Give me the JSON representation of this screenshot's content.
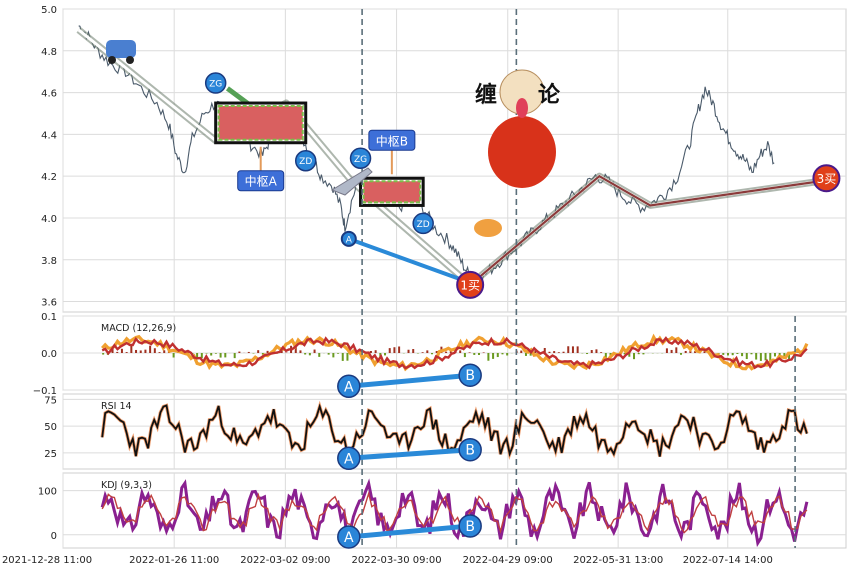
{
  "chart_data": [
    {
      "type": "line",
      "panel": "price",
      "ylim": [
        3.55,
        5.0
      ],
      "y_ticks": [
        "5.0",
        "4.8",
        "4.6",
        "4.4",
        "4.2",
        "4.0",
        "3.8",
        "3.6"
      ],
      "y_tick_values": [
        5.0,
        4.8,
        4.6,
        4.4,
        4.2,
        4.0,
        3.8,
        3.6
      ],
      "grid": true,
      "x_ticks": [
        "2021-12-28 11:00",
        "2022-01-26 11:00",
        "2022-03-02 09:00",
        "2022-03-30 09:00",
        "2022-04-29 09:00",
        "2022-05-31 13:00",
        "2022-07-14 14:00"
      ],
      "price_series": [
        [
          0.02,
          4.92
        ],
        [
          0.03,
          4.88
        ],
        [
          0.045,
          4.8
        ],
        [
          0.06,
          4.74
        ],
        [
          0.08,
          4.7
        ],
        [
          0.1,
          4.62
        ],
        [
          0.12,
          4.55
        ],
        [
          0.135,
          4.45
        ],
        [
          0.145,
          4.3
        ],
        [
          0.155,
          4.22
        ],
        [
          0.165,
          4.38
        ],
        [
          0.18,
          4.5
        ],
        [
          0.195,
          4.55
        ],
        [
          0.21,
          4.5
        ],
        [
          0.225,
          4.45
        ],
        [
          0.24,
          4.35
        ],
        [
          0.255,
          4.3
        ],
        [
          0.265,
          4.38
        ],
        [
          0.28,
          4.5
        ],
        [
          0.295,
          4.45
        ],
        [
          0.31,
          4.35
        ],
        [
          0.32,
          4.28
        ],
        [
          0.33,
          4.2
        ],
        [
          0.345,
          4.15
        ],
        [
          0.355,
          4.05
        ],
        [
          0.36,
          3.96
        ],
        [
          0.37,
          4.1
        ],
        [
          0.38,
          4.2
        ],
        [
          0.395,
          4.15
        ],
        [
          0.41,
          4.1
        ],
        [
          0.43,
          4.05
        ],
        [
          0.445,
          4.1
        ],
        [
          0.46,
          4.05
        ],
        [
          0.475,
          3.95
        ],
        [
          0.49,
          3.9
        ],
        [
          0.5,
          3.85
        ],
        [
          0.51,
          3.78
        ],
        [
          0.52,
          3.72
        ],
        [
          0.53,
          3.7
        ],
        [
          0.545,
          3.75
        ],
        [
          0.56,
          3.8
        ],
        [
          0.575,
          3.85
        ],
        [
          0.59,
          3.9
        ],
        [
          0.605,
          3.95
        ],
        [
          0.62,
          4.0
        ],
        [
          0.635,
          4.05
        ],
        [
          0.65,
          4.1
        ],
        [
          0.665,
          4.15
        ],
        [
          0.68,
          4.2
        ],
        [
          0.695,
          4.18
        ],
        [
          0.71,
          4.12
        ],
        [
          0.725,
          4.08
        ],
        [
          0.74,
          4.05
        ],
        [
          0.755,
          4.08
        ],
        [
          0.77,
          4.12
        ],
        [
          0.785,
          4.2
        ],
        [
          0.8,
          4.35
        ],
        [
          0.81,
          4.5
        ],
        [
          0.82,
          4.62
        ],
        [
          0.83,
          4.55
        ],
        [
          0.84,
          4.45
        ],
        [
          0.85,
          4.38
        ],
        [
          0.86,
          4.32
        ],
        [
          0.87,
          4.28
        ],
        [
          0.88,
          4.22
        ],
        [
          0.89,
          4.3
        ],
        [
          0.9,
          4.35
        ],
        [
          0.91,
          4.25
        ]
      ],
      "bi_lines": [
        {
          "points": [
            [
              0.02,
              4.9
            ],
            [
              0.195,
              4.37
            ],
            [
              0.285,
              4.55
            ],
            [
              0.37,
              4.17
            ],
            [
              0.52,
              3.68
            ],
            [
              0.685,
              4.2
            ],
            [
              0.75,
              4.06
            ],
            [
              0.975,
              4.18
            ]
          ],
          "color": "#e0e0e0"
        }
      ],
      "zhongshu": [
        {
          "label": "中枢A",
          "x0": 0.195,
          "x1": 0.31,
          "y0": 4.36,
          "y1": 4.55,
          "zg_label": "ZG",
          "zd_label": "ZD"
        },
        {
          "label": "中枢B",
          "x0": 0.38,
          "x1": 0.46,
          "y0": 4.06,
          "y1": 4.19,
          "zg_label": "ZG",
          "zd_label": "ZD"
        }
      ],
      "markers": [
        {
          "label": "A",
          "x": 0.365,
          "y": 3.9
        },
        {
          "label": "1买",
          "x": 0.52,
          "y": 3.68
        },
        {
          "label": "3买",
          "x": 0.975,
          "y": 4.19
        }
      ],
      "title_graphic_text": [
        "缠",
        "论"
      ]
    },
    {
      "type": "line",
      "panel": "macd",
      "label": "MACD (12,26,9)",
      "ylim": [
        -0.1,
        0.1
      ],
      "y_ticks": [
        "0.1",
        "0.0",
        "−0.1"
      ],
      "y_tick_values": [
        0.1,
        0.0,
        -0.1
      ],
      "markers": [
        {
          "label": "A",
          "x": 0.365,
          "y": -0.09
        },
        {
          "label": "B",
          "x": 0.52,
          "y": -0.06
        }
      ]
    },
    {
      "type": "line",
      "panel": "rsi",
      "label": "RSI 14",
      "ylim": [
        10,
        80
      ],
      "y_ticks": [
        "75",
        "50",
        "25"
      ],
      "y_tick_values": [
        75,
        50,
        25
      ],
      "markers": [
        {
          "label": "A",
          "x": 0.365,
          "y": 20
        },
        {
          "label": "B",
          "x": 0.52,
          "y": 28
        }
      ]
    },
    {
      "type": "line",
      "panel": "kdj",
      "label": "KDJ (9,3,3)",
      "ylim": [
        -30,
        140
      ],
      "y_ticks": [
        "100",
        "0"
      ],
      "y_tick_values": [
        100,
        0
      ],
      "markers": [
        {
          "label": "A",
          "x": 0.365,
          "y": -5
        },
        {
          "label": "B",
          "x": 0.52,
          "y": 20
        }
      ]
    }
  ]
}
